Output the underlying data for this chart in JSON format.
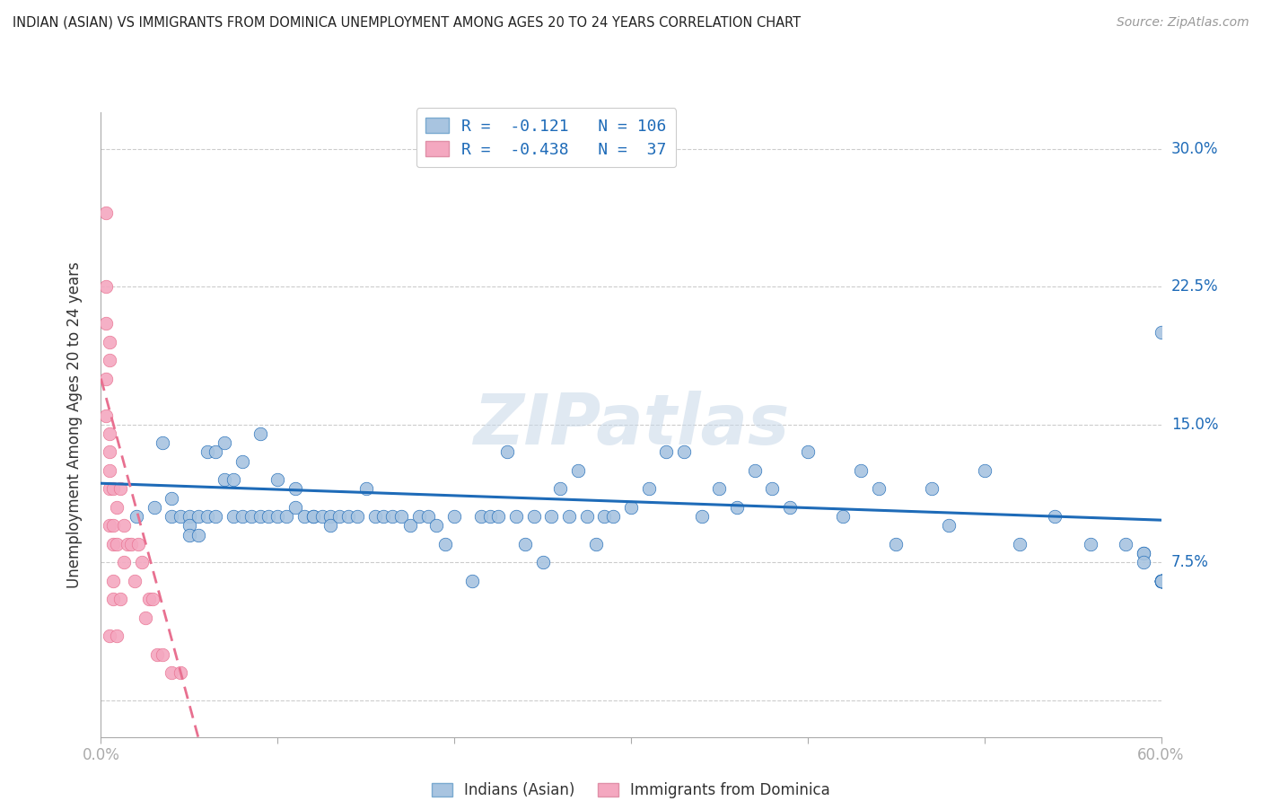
{
  "title": "INDIAN (ASIAN) VS IMMIGRANTS FROM DOMINICA UNEMPLOYMENT AMONG AGES 20 TO 24 YEARS CORRELATION CHART",
  "source": "Source: ZipAtlas.com",
  "xlabel": "",
  "ylabel": "Unemployment Among Ages 20 to 24 years",
  "xlim": [
    0.0,
    0.6
  ],
  "ylim": [
    -0.02,
    0.32
  ],
  "xticks": [
    0.0,
    0.1,
    0.2,
    0.3,
    0.4,
    0.5,
    0.6
  ],
  "xticklabels": [
    "0.0%",
    "",
    "",
    "",
    "",
    "",
    "60.0%"
  ],
  "yticks": [
    0.0,
    0.075,
    0.15,
    0.225,
    0.3
  ],
  "yticklabels": [
    "",
    "7.5%",
    "15.0%",
    "22.5%",
    "30.0%"
  ],
  "blue_R": -0.121,
  "blue_N": 106,
  "pink_R": -0.438,
  "pink_N": 37,
  "blue_color": "#a8c4e0",
  "pink_color": "#f4a8c0",
  "blue_line_color": "#1e6bb8",
  "pink_line_color": "#e87090",
  "legend_label_blue": "Indians (Asian)",
  "legend_label_pink": "Immigrants from Dominica",
  "watermark": "ZIPatlas",
  "blue_scatter_x": [
    0.02,
    0.03,
    0.035,
    0.04,
    0.04,
    0.045,
    0.05,
    0.05,
    0.05,
    0.055,
    0.055,
    0.06,
    0.06,
    0.065,
    0.065,
    0.07,
    0.07,
    0.075,
    0.075,
    0.08,
    0.08,
    0.085,
    0.09,
    0.09,
    0.095,
    0.1,
    0.1,
    0.105,
    0.11,
    0.11,
    0.115,
    0.12,
    0.12,
    0.125,
    0.13,
    0.13,
    0.135,
    0.14,
    0.145,
    0.15,
    0.155,
    0.16,
    0.165,
    0.17,
    0.175,
    0.18,
    0.185,
    0.19,
    0.195,
    0.2,
    0.21,
    0.215,
    0.22,
    0.225,
    0.23,
    0.235,
    0.24,
    0.245,
    0.25,
    0.255,
    0.26,
    0.265,
    0.27,
    0.275,
    0.28,
    0.285,
    0.29,
    0.3,
    0.31,
    0.32,
    0.33,
    0.34,
    0.35,
    0.36,
    0.37,
    0.38,
    0.39,
    0.4,
    0.42,
    0.43,
    0.44,
    0.45,
    0.47,
    0.48,
    0.5,
    0.52,
    0.54,
    0.56,
    0.58,
    0.59,
    0.59,
    0.59,
    0.6,
    0.6,
    0.6,
    0.6,
    0.6,
    0.6,
    0.6,
    0.6,
    0.6,
    0.6,
    0.6,
    0.6,
    0.6,
    0.6
  ],
  "blue_scatter_y": [
    0.1,
    0.105,
    0.14,
    0.11,
    0.1,
    0.1,
    0.1,
    0.095,
    0.09,
    0.1,
    0.09,
    0.135,
    0.1,
    0.135,
    0.1,
    0.14,
    0.12,
    0.12,
    0.1,
    0.13,
    0.1,
    0.1,
    0.145,
    0.1,
    0.1,
    0.12,
    0.1,
    0.1,
    0.115,
    0.105,
    0.1,
    0.1,
    0.1,
    0.1,
    0.1,
    0.095,
    0.1,
    0.1,
    0.1,
    0.115,
    0.1,
    0.1,
    0.1,
    0.1,
    0.095,
    0.1,
    0.1,
    0.095,
    0.085,
    0.1,
    0.065,
    0.1,
    0.1,
    0.1,
    0.135,
    0.1,
    0.085,
    0.1,
    0.075,
    0.1,
    0.115,
    0.1,
    0.125,
    0.1,
    0.085,
    0.1,
    0.1,
    0.105,
    0.115,
    0.135,
    0.135,
    0.1,
    0.115,
    0.105,
    0.125,
    0.115,
    0.105,
    0.135,
    0.1,
    0.125,
    0.115,
    0.085,
    0.115,
    0.095,
    0.125,
    0.085,
    0.1,
    0.085,
    0.085,
    0.08,
    0.08,
    0.075,
    0.065,
    0.065,
    0.065,
    0.065,
    0.065,
    0.065,
    0.065,
    0.065,
    0.065,
    0.065,
    0.065,
    0.065,
    0.065,
    0.2
  ],
  "pink_scatter_x": [
    0.003,
    0.003,
    0.003,
    0.003,
    0.003,
    0.005,
    0.005,
    0.005,
    0.005,
    0.005,
    0.005,
    0.005,
    0.005,
    0.007,
    0.007,
    0.007,
    0.007,
    0.007,
    0.009,
    0.009,
    0.009,
    0.011,
    0.011,
    0.013,
    0.013,
    0.015,
    0.017,
    0.019,
    0.021,
    0.023,
    0.025,
    0.027,
    0.029,
    0.032,
    0.035,
    0.04,
    0.045
  ],
  "pink_scatter_y": [
    0.265,
    0.225,
    0.205,
    0.175,
    0.155,
    0.195,
    0.185,
    0.145,
    0.135,
    0.125,
    0.115,
    0.095,
    0.035,
    0.115,
    0.095,
    0.085,
    0.065,
    0.055,
    0.105,
    0.085,
    0.035,
    0.115,
    0.055,
    0.095,
    0.075,
    0.085,
    0.085,
    0.065,
    0.085,
    0.075,
    0.045,
    0.055,
    0.055,
    0.025,
    0.025,
    0.015,
    0.015
  ],
  "blue_trend_x0": 0.0,
  "blue_trend_x1": 0.6,
  "blue_trend_y0": 0.118,
  "blue_trend_y1": 0.098,
  "pink_trend_x0": 0.0,
  "pink_trend_x1": 0.055,
  "pink_trend_y0": 0.175,
  "pink_trend_y1": -0.02
}
